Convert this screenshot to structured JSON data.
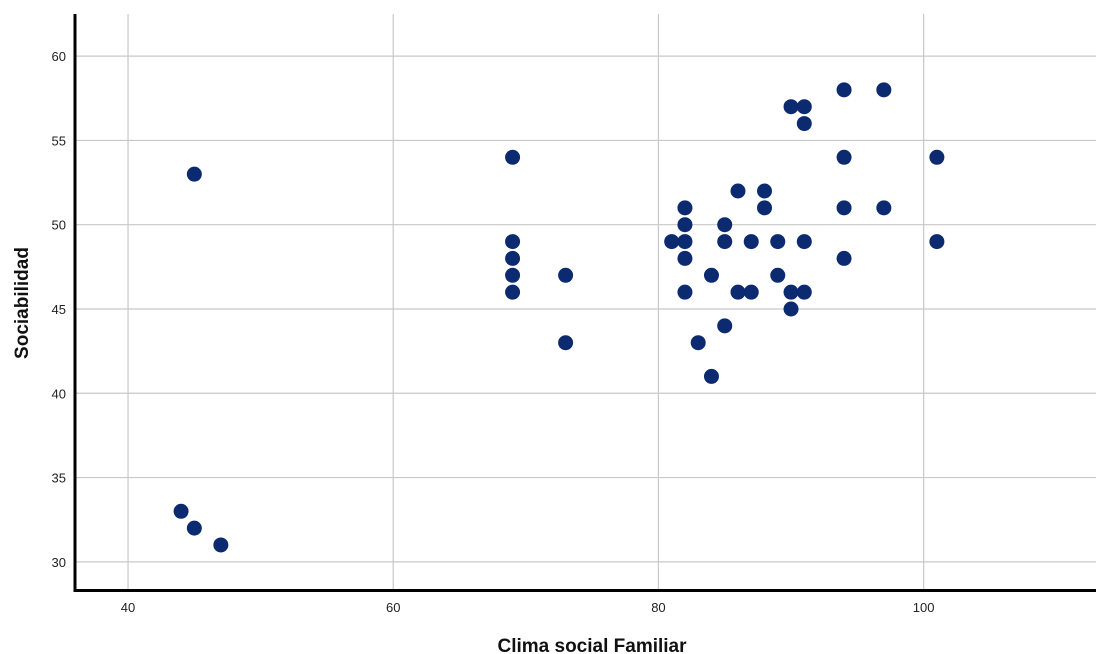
{
  "chart_data": {
    "type": "scatter",
    "title": "",
    "xlabel": "Clima social Familiar",
    "ylabel": "Sociabilidad",
    "xlim": [
      36,
      113
    ],
    "ylim": [
      28.3,
      62.5
    ],
    "xticks": [
      40,
      60,
      80,
      100
    ],
    "yticks": [
      30,
      35,
      40,
      45,
      50,
      55,
      60
    ],
    "grid": true,
    "marker_color": "#0b2a6f",
    "points": [
      [
        44,
        33
      ],
      [
        45,
        32
      ],
      [
        47,
        31
      ],
      [
        45,
        53
      ],
      [
        69,
        54
      ],
      [
        69,
        49
      ],
      [
        69,
        48
      ],
      [
        69,
        47
      ],
      [
        69,
        46
      ],
      [
        73,
        47
      ],
      [
        73,
        43
      ],
      [
        81,
        49
      ],
      [
        82,
        51
      ],
      [
        82,
        50
      ],
      [
        82,
        49
      ],
      [
        82,
        48
      ],
      [
        82,
        46
      ],
      [
        83,
        43
      ],
      [
        84,
        47
      ],
      [
        84,
        41
      ],
      [
        85,
        50
      ],
      [
        85,
        49
      ],
      [
        85,
        44
      ],
      [
        86,
        52
      ],
      [
        86,
        46
      ],
      [
        87,
        49
      ],
      [
        87,
        46
      ],
      [
        88,
        52
      ],
      [
        88,
        51
      ],
      [
        89,
        49
      ],
      [
        89,
        47
      ],
      [
        90,
        57
      ],
      [
        90,
        46
      ],
      [
        90,
        45
      ],
      [
        91,
        57
      ],
      [
        91,
        56
      ],
      [
        91,
        49
      ],
      [
        91,
        46
      ],
      [
        94,
        58
      ],
      [
        94,
        54
      ],
      [
        94,
        51
      ],
      [
        94,
        48
      ],
      [
        97,
        58
      ],
      [
        97,
        51
      ],
      [
        101,
        54
      ],
      [
        101,
        49
      ]
    ]
  }
}
